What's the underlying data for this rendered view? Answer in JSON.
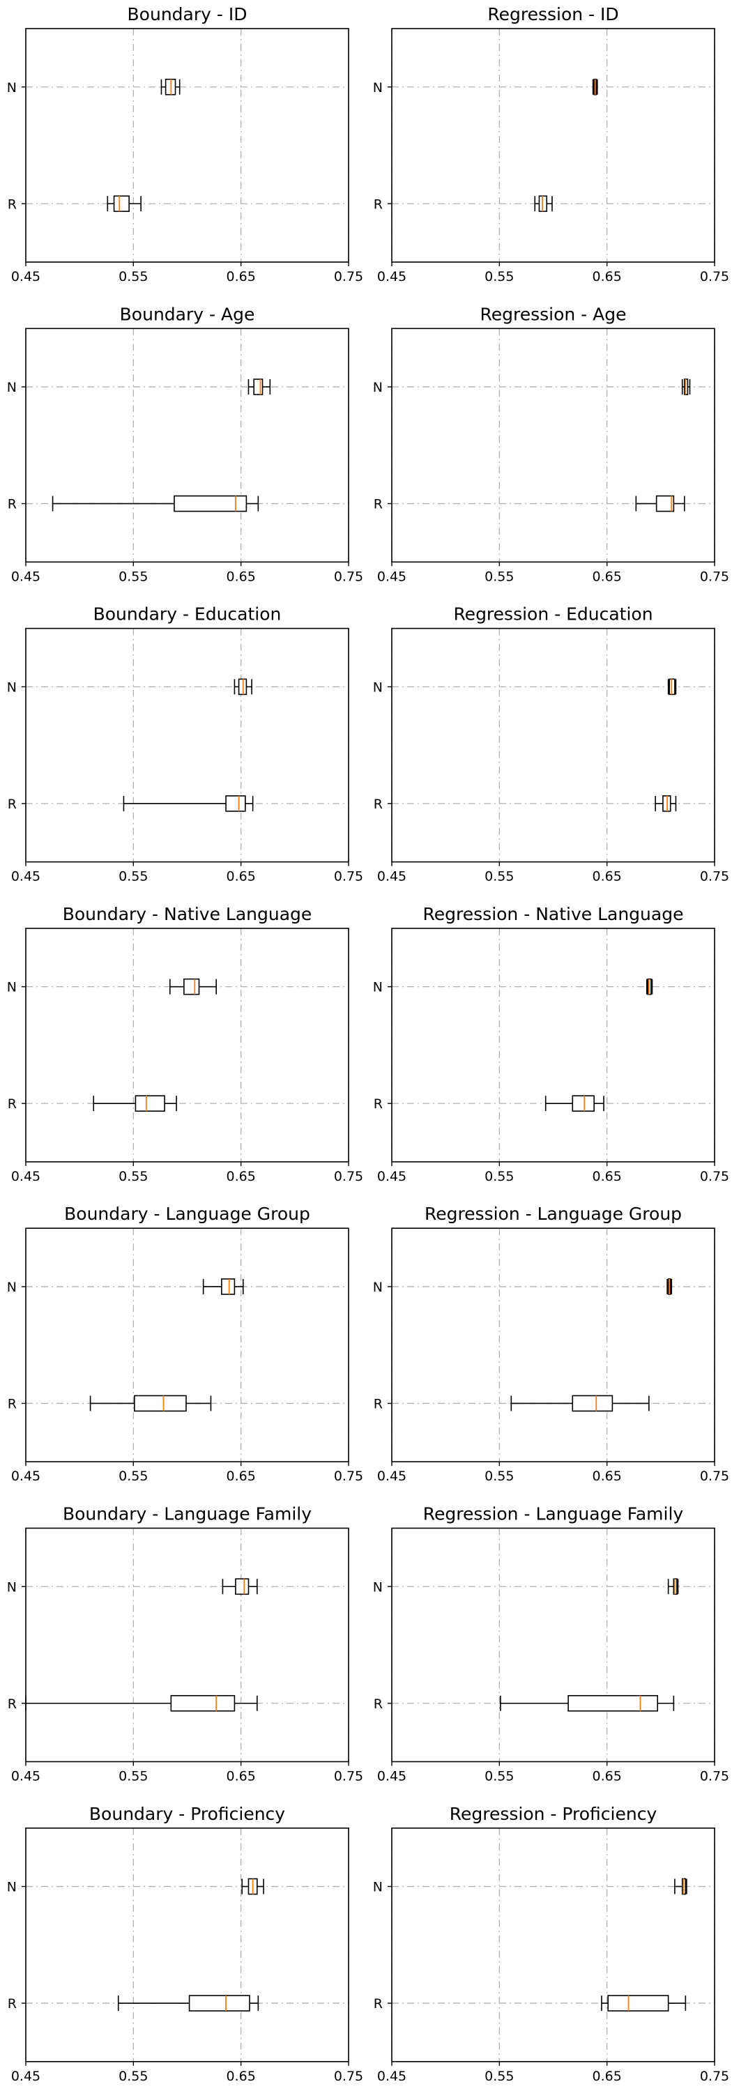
{
  "colors": {
    "box": "#000000",
    "median": "#ff7f0e",
    "grid": "#b0b0b0",
    "frame": "#000000"
  },
  "chart_data": [
    {
      "type": "boxplot",
      "title": "Boundary - ID",
      "categories": [
        "N",
        "R"
      ],
      "xlim": [
        0.45,
        0.75
      ],
      "xticks": [
        "0.45",
        "0.55",
        "0.65",
        "0.75"
      ],
      "grid": true,
      "series": [
        {
          "category": "N",
          "whisker_low": 0.576,
          "q1": 0.58,
          "median": 0.585,
          "q3": 0.589,
          "whisker_high": 0.593
        },
        {
          "category": "R",
          "whisker_low": 0.526,
          "q1": 0.532,
          "median": 0.537,
          "q3": 0.546,
          "whisker_high": 0.557
        }
      ]
    },
    {
      "type": "boxplot",
      "title": "Regression - ID",
      "categories": [
        "N",
        "R"
      ],
      "xlim": [
        0.45,
        0.75
      ],
      "xticks": [
        "0.45",
        "0.55",
        "0.65",
        "0.75"
      ],
      "grid": true,
      "series": [
        {
          "category": "N",
          "whisker_low": 0.637,
          "q1": 0.638,
          "median": 0.639,
          "q3": 0.64,
          "whisker_high": 0.641
        },
        {
          "category": "R",
          "whisker_low": 0.583,
          "q1": 0.587,
          "median": 0.59,
          "q3": 0.594,
          "whisker_high": 0.599
        }
      ]
    },
    {
      "type": "boxplot",
      "title": "Boundary - Age",
      "categories": [
        "N",
        "R"
      ],
      "xlim": [
        0.45,
        0.75
      ],
      "xticks": [
        "0.45",
        "0.55",
        "0.65",
        "0.75"
      ],
      "grid": true,
      "series": [
        {
          "category": "N",
          "whisker_low": 0.657,
          "q1": 0.662,
          "median": 0.668,
          "q3": 0.67,
          "whisker_high": 0.677
        },
        {
          "category": "R",
          "whisker_low": 0.475,
          "q1": 0.588,
          "median": 0.645,
          "q3": 0.655,
          "whisker_high": 0.666
        }
      ]
    },
    {
      "type": "boxplot",
      "title": "Regression - Age",
      "categories": [
        "N",
        "R"
      ],
      "xlim": [
        0.45,
        0.75
      ],
      "xticks": [
        "0.45",
        "0.55",
        "0.65",
        "0.75"
      ],
      "grid": true,
      "series": [
        {
          "category": "N",
          "whisker_low": 0.72,
          "q1": 0.722,
          "median": 0.723,
          "q3": 0.725,
          "whisker_high": 0.727
        },
        {
          "category": "R",
          "whisker_low": 0.677,
          "q1": 0.696,
          "median": 0.71,
          "q3": 0.712,
          "whisker_high": 0.722
        }
      ]
    },
    {
      "type": "boxplot",
      "title": "Boundary - Education",
      "categories": [
        "N",
        "R"
      ],
      "xlim": [
        0.45,
        0.75
      ],
      "xticks": [
        "0.45",
        "0.55",
        "0.65",
        "0.75"
      ],
      "grid": true,
      "series": [
        {
          "category": "N",
          "whisker_low": 0.644,
          "q1": 0.648,
          "median": 0.652,
          "q3": 0.655,
          "whisker_high": 0.66
        },
        {
          "category": "R",
          "whisker_low": 0.541,
          "q1": 0.636,
          "median": 0.648,
          "q3": 0.654,
          "whisker_high": 0.661
        }
      ]
    },
    {
      "type": "boxplot",
      "title": "Regression - Education",
      "categories": [
        "N",
        "R"
      ],
      "xlim": [
        0.45,
        0.75
      ],
      "xticks": [
        "0.45",
        "0.55",
        "0.65",
        "0.75"
      ],
      "grid": true,
      "series": [
        {
          "category": "N",
          "whisker_low": 0.707,
          "q1": 0.708,
          "median": 0.71,
          "q3": 0.713,
          "whisker_high": 0.714
        },
        {
          "category": "R",
          "whisker_low": 0.695,
          "q1": 0.702,
          "median": 0.706,
          "q3": 0.709,
          "whisker_high": 0.714
        }
      ]
    },
    {
      "type": "boxplot",
      "title": "Boundary - Native Language",
      "categories": [
        "N",
        "R"
      ],
      "xlim": [
        0.45,
        0.75
      ],
      "xticks": [
        "0.45",
        "0.55",
        "0.65",
        "0.75"
      ],
      "grid": true,
      "series": [
        {
          "category": "N",
          "whisker_low": 0.584,
          "q1": 0.597,
          "median": 0.607,
          "q3": 0.611,
          "whisker_high": 0.627
        },
        {
          "category": "R",
          "whisker_low": 0.513,
          "q1": 0.552,
          "median": 0.562,
          "q3": 0.579,
          "whisker_high": 0.59
        }
      ]
    },
    {
      "type": "boxplot",
      "title": "Regression - Native Language",
      "categories": [
        "N",
        "R"
      ],
      "xlim": [
        0.45,
        0.75
      ],
      "xticks": [
        "0.45",
        "0.55",
        "0.65",
        "0.75"
      ],
      "grid": true,
      "series": [
        {
          "category": "N",
          "whisker_low": 0.687,
          "q1": 0.688,
          "median": 0.689,
          "q3": 0.691,
          "whisker_high": 0.692
        },
        {
          "category": "R",
          "whisker_low": 0.593,
          "q1": 0.618,
          "median": 0.629,
          "q3": 0.638,
          "whisker_high": 0.647
        }
      ]
    },
    {
      "type": "boxplot",
      "title": "Boundary - Language Group",
      "categories": [
        "N",
        "R"
      ],
      "xlim": [
        0.45,
        0.75
      ],
      "xticks": [
        "0.45",
        "0.55",
        "0.65",
        "0.75"
      ],
      "grid": true,
      "series": [
        {
          "category": "N",
          "whisker_low": 0.615,
          "q1": 0.632,
          "median": 0.639,
          "q3": 0.644,
          "whisker_high": 0.652
        },
        {
          "category": "R",
          "whisker_low": 0.51,
          "q1": 0.551,
          "median": 0.578,
          "q3": 0.599,
          "whisker_high": 0.622
        }
      ]
    },
    {
      "type": "boxplot",
      "title": "Regression - Language Group",
      "categories": [
        "N",
        "R"
      ],
      "xlim": [
        0.45,
        0.75
      ],
      "xticks": [
        "0.45",
        "0.55",
        "0.65",
        "0.75"
      ],
      "grid": true,
      "series": [
        {
          "category": "N",
          "whisker_low": 0.706,
          "q1": 0.707,
          "median": 0.708,
          "q3": 0.709,
          "whisker_high": 0.71
        },
        {
          "category": "R",
          "whisker_low": 0.561,
          "q1": 0.618,
          "median": 0.64,
          "q3": 0.655,
          "whisker_high": 0.689
        }
      ]
    },
    {
      "type": "boxplot",
      "title": "Boundary - Language Family",
      "categories": [
        "N",
        "R"
      ],
      "xlim": [
        0.45,
        0.75
      ],
      "xticks": [
        "0.45",
        "0.55",
        "0.65",
        "0.75"
      ],
      "grid": true,
      "series": [
        {
          "category": "N",
          "whisker_low": 0.633,
          "q1": 0.645,
          "median": 0.653,
          "q3": 0.657,
          "whisker_high": 0.665
        },
        {
          "category": "R",
          "whisker_low": 0.45,
          "q1": 0.585,
          "median": 0.627,
          "q3": 0.644,
          "whisker_high": 0.665
        }
      ]
    },
    {
      "type": "boxplot",
      "title": "Regression - Language Family",
      "categories": [
        "N",
        "R"
      ],
      "xlim": [
        0.45,
        0.75
      ],
      "xticks": [
        "0.45",
        "0.55",
        "0.65",
        "0.75"
      ],
      "grid": true,
      "series": [
        {
          "category": "N",
          "whisker_low": 0.707,
          "q1": 0.712,
          "median": 0.713,
          "q3": 0.715,
          "whisker_high": 0.716
        },
        {
          "category": "R",
          "whisker_low": 0.551,
          "q1": 0.614,
          "median": 0.681,
          "q3": 0.697,
          "whisker_high": 0.712
        }
      ]
    },
    {
      "type": "boxplot",
      "title": "Boundary - Proficiency",
      "categories": [
        "N",
        "R"
      ],
      "xlim": [
        0.45,
        0.75
      ],
      "xticks": [
        "0.45",
        "0.55",
        "0.65",
        "0.75"
      ],
      "grid": true,
      "series": [
        {
          "category": "N",
          "whisker_low": 0.651,
          "q1": 0.657,
          "median": 0.661,
          "q3": 0.665,
          "whisker_high": 0.671
        },
        {
          "category": "R",
          "whisker_low": 0.536,
          "q1": 0.602,
          "median": 0.636,
          "q3": 0.658,
          "whisker_high": 0.666
        }
      ]
    },
    {
      "type": "boxplot",
      "title": "Regression - Proficiency",
      "categories": [
        "N",
        "R"
      ],
      "xlim": [
        0.45,
        0.75
      ],
      "xticks": [
        "0.45",
        "0.55",
        "0.65",
        "0.75"
      ],
      "grid": true,
      "series": [
        {
          "category": "N",
          "whisker_low": 0.713,
          "q1": 0.72,
          "median": 0.721,
          "q3": 0.723,
          "whisker_high": 0.724
        },
        {
          "category": "R",
          "whisker_low": 0.645,
          "q1": 0.651,
          "median": 0.67,
          "q3": 0.707,
          "whisker_high": 0.723
        }
      ]
    }
  ]
}
